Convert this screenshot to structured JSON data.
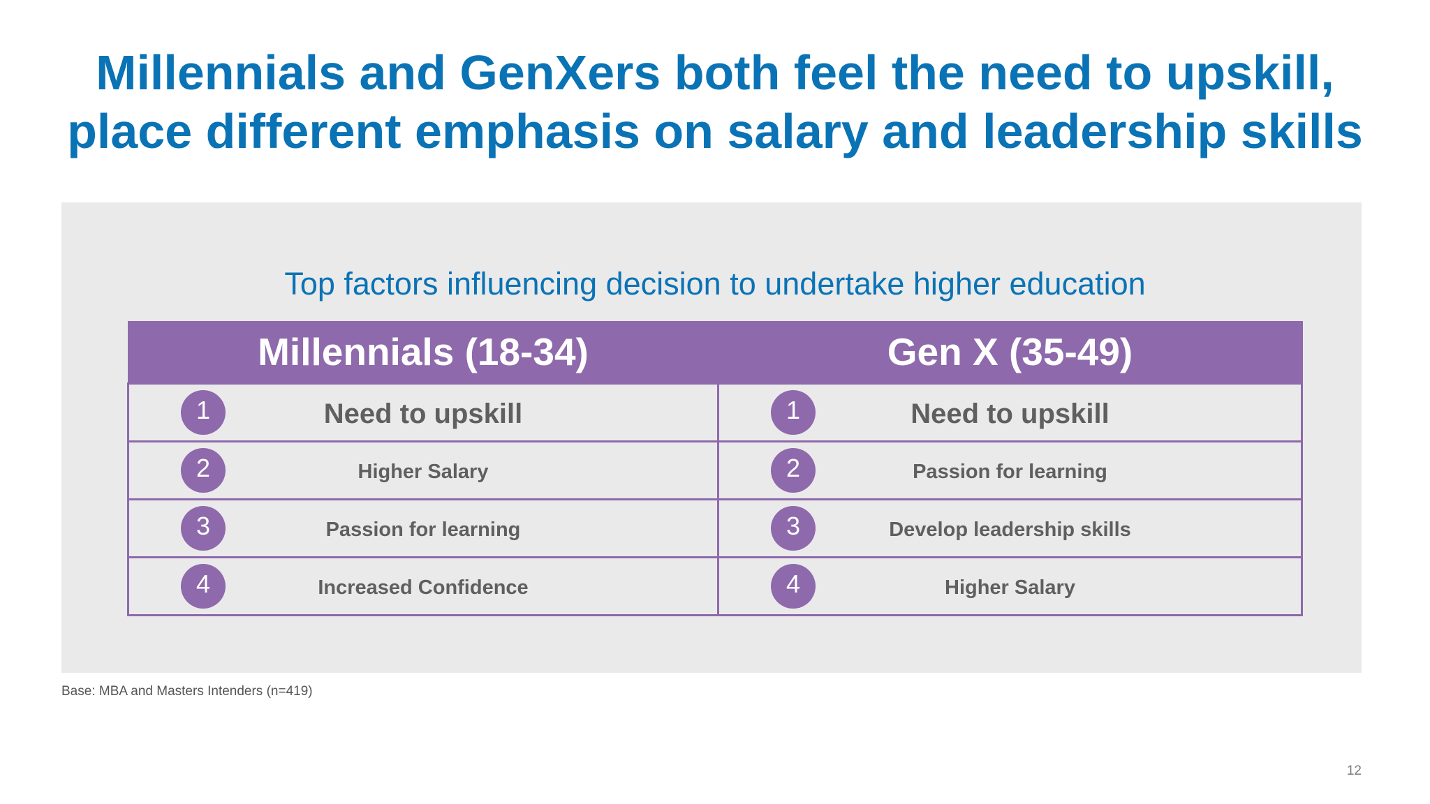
{
  "title": {
    "line1": "Millennials and GenXers both feel the need to upskill,",
    "line2": "place different emphasis on salary and leadership skills"
  },
  "subtitle": "Top factors influencing decision to undertake higher education",
  "columns": [
    {
      "header": "Millennials (18-34)",
      "rows": [
        {
          "rank": "1",
          "factor": "Need to upskill"
        },
        {
          "rank": "2",
          "factor": "Higher Salary"
        },
        {
          "rank": "3",
          "factor": "Passion for learning"
        },
        {
          "rank": "4",
          "factor": "Increased Confidence"
        }
      ]
    },
    {
      "header": "Gen X (35-49)",
      "rows": [
        {
          "rank": "1",
          "factor": "Need to upskill"
        },
        {
          "rank": "2",
          "factor": "Passion for learning"
        },
        {
          "rank": "3",
          "factor": "Develop leadership skills"
        },
        {
          "rank": "4",
          "factor": "Higher Salary"
        }
      ]
    }
  ],
  "footnote": "Base: MBA and Masters Intenders (n=419)",
  "page_number": "12",
  "colors": {
    "title_blue": "#0a73b5",
    "purple": "#8e69ab",
    "panel_gray": "#ebeaeb",
    "text_gray": "#5f5f5f"
  }
}
